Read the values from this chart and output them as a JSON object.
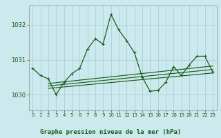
{
  "title": "Graphe pression niveau de la mer (hPa)",
  "xlabel_hours": [
    0,
    1,
    2,
    3,
    4,
    5,
    6,
    7,
    8,
    9,
    10,
    11,
    12,
    13,
    14,
    15,
    16,
    17,
    18,
    19,
    20,
    21,
    22,
    23
  ],
  "bg_color": "#cce9ee",
  "grid_color": "#aacfd8",
  "line_color": "#1a5c1a",
  "spine_color": "#888888",
  "ylim": [
    1029.55,
    1032.55
  ],
  "yticks": [
    1030,
    1031,
    1032
  ],
  "main_line": {
    "x": [
      0,
      1,
      2,
      3,
      4,
      5,
      6,
      7,
      8,
      9,
      10,
      11,
      12,
      13,
      14,
      15,
      16,
      17,
      18,
      19,
      20,
      21,
      22,
      23
    ],
    "y": [
      1030.75,
      1030.55,
      1030.45,
      1030.0,
      1030.35,
      1030.6,
      1030.75,
      1031.3,
      1031.6,
      1031.45,
      1032.3,
      1031.85,
      1031.55,
      1031.2,
      1030.5,
      1030.1,
      1030.12,
      1030.35,
      1030.8,
      1030.55,
      1030.85,
      1031.1,
      1031.1,
      1030.65
    ]
  },
  "trend_line1": {
    "x": [
      2,
      23
    ],
    "y": [
      1030.25,
      1030.72
    ]
  },
  "trend_line2": {
    "x": [
      2,
      23
    ],
    "y": [
      1030.32,
      1030.82
    ]
  },
  "trend_line3": {
    "x": [
      2,
      23
    ],
    "y": [
      1030.18,
      1030.62
    ]
  },
  "label_fontsize": 5.0,
  "ylabel_fontsize": 6.0,
  "xlabel_fontsize": 6.5
}
